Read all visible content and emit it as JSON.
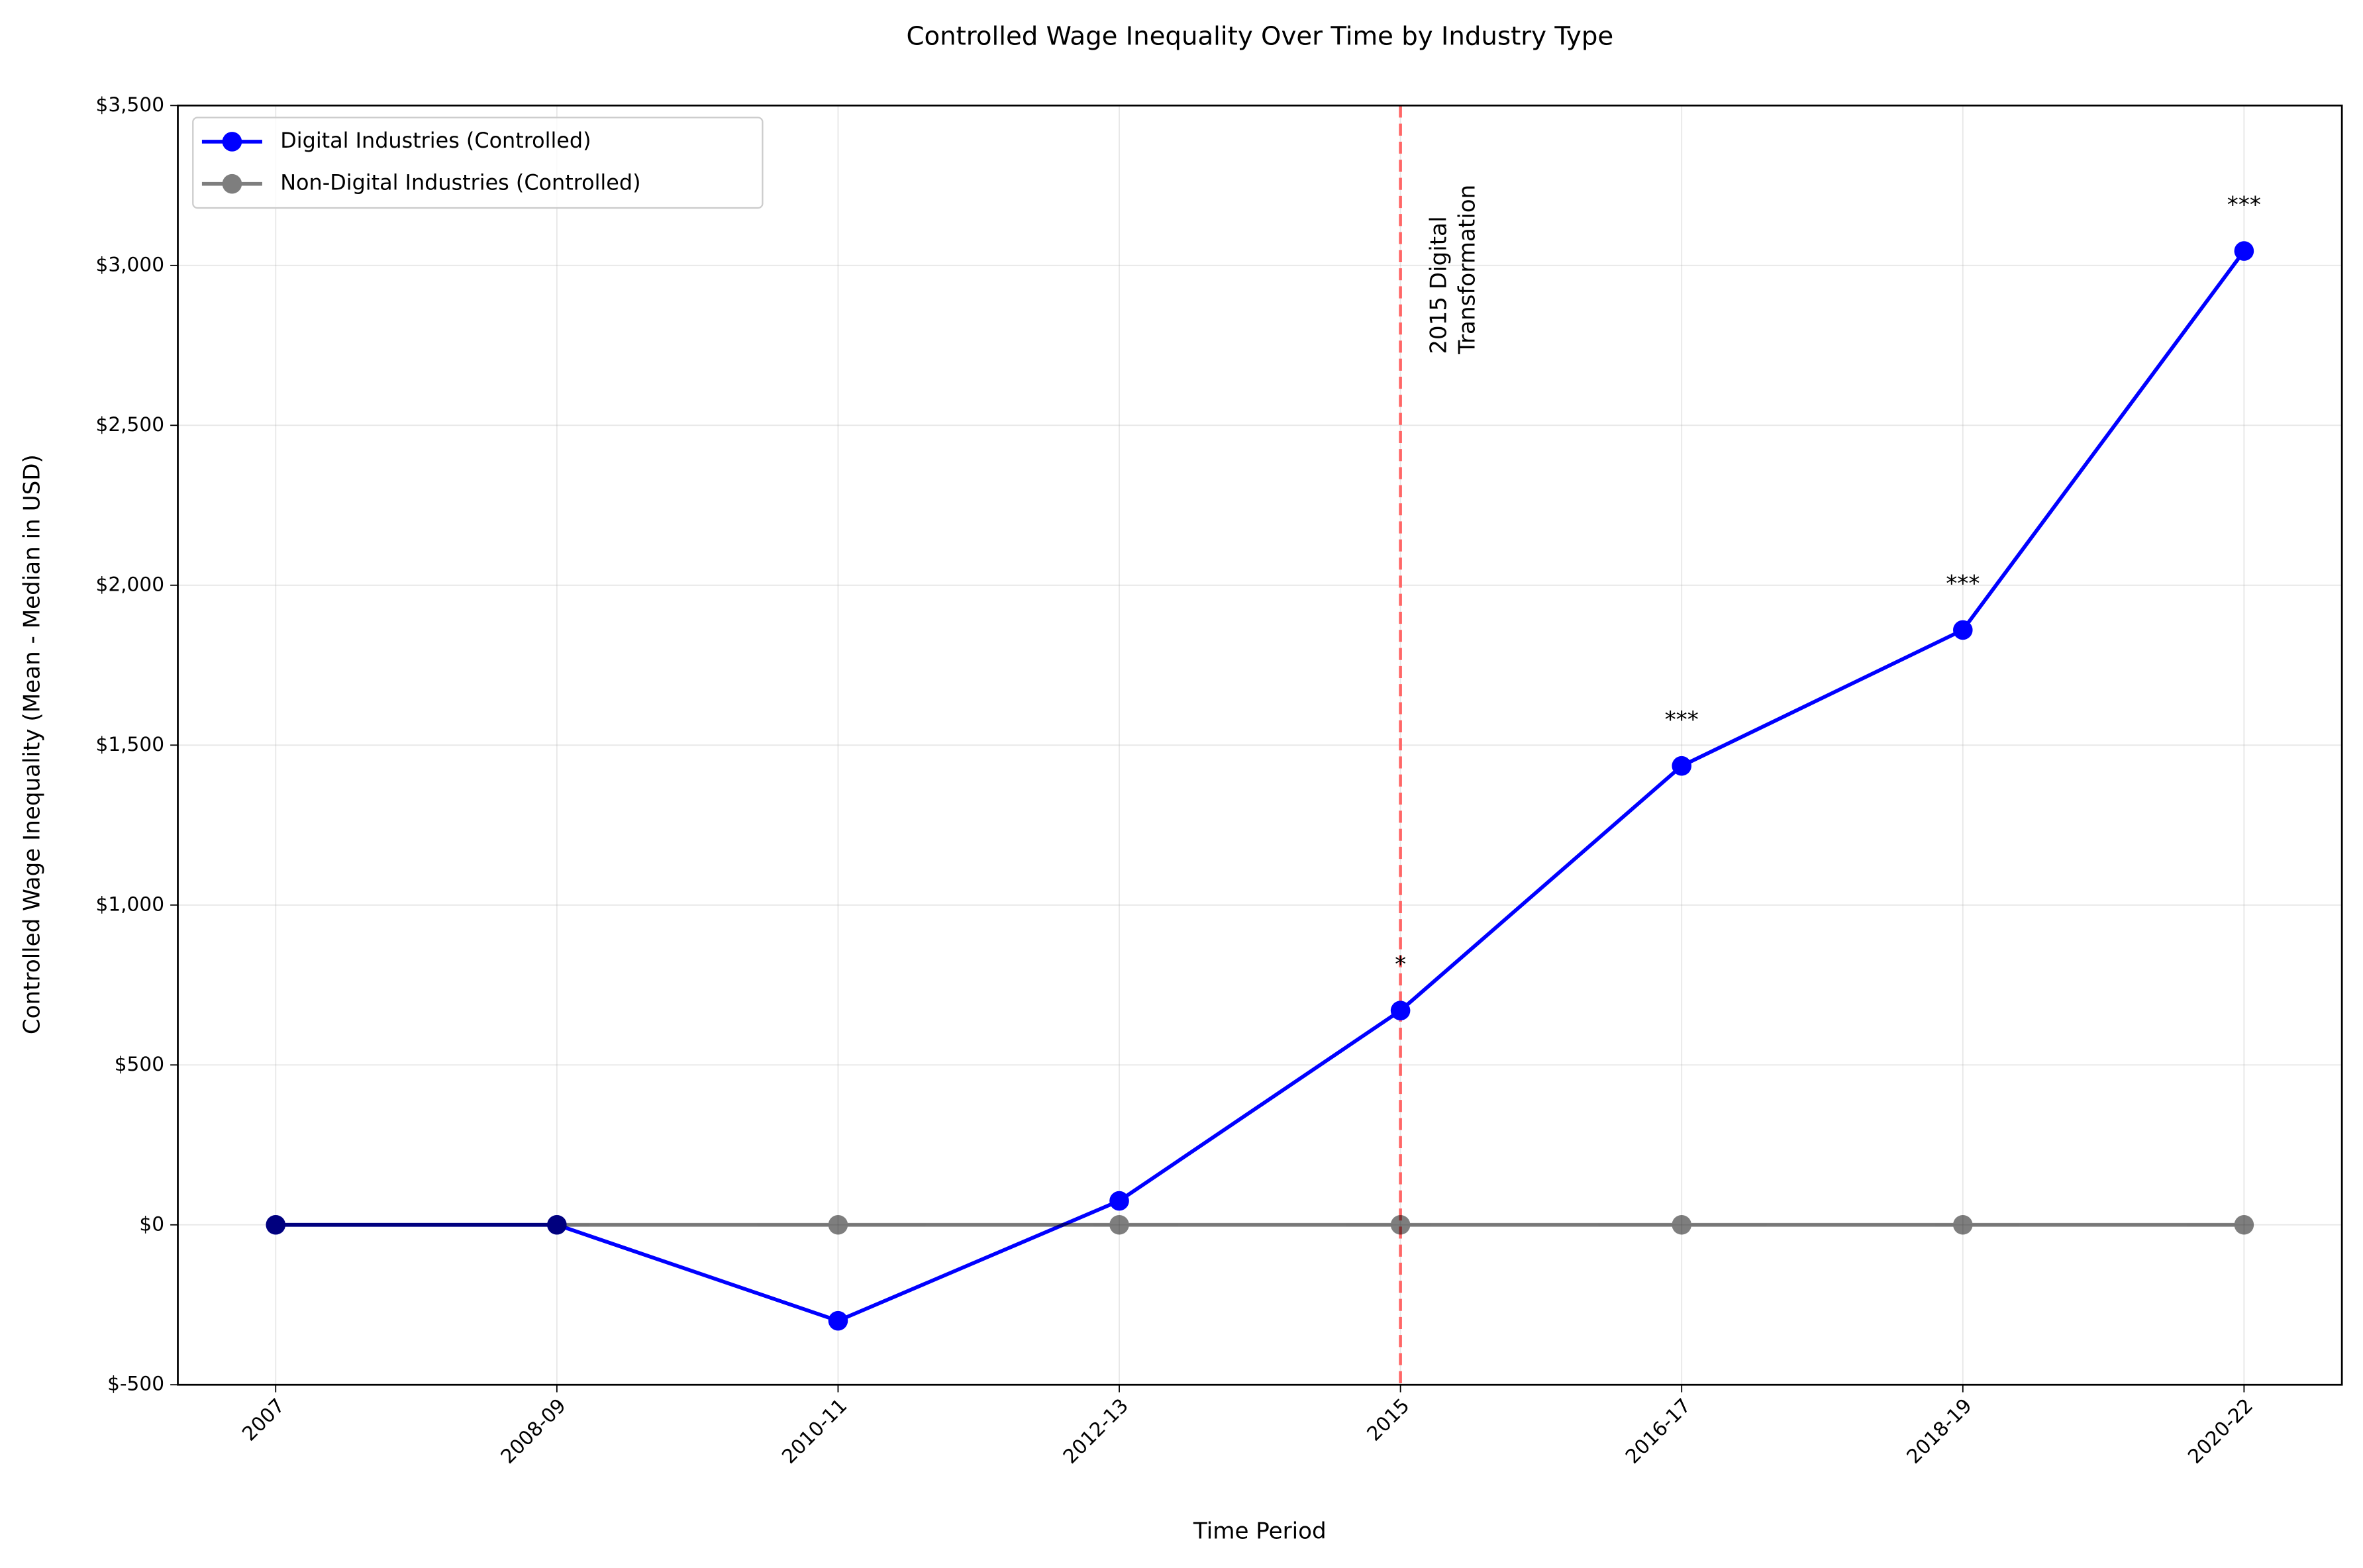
{
  "chart_data": {
    "type": "line",
    "title": "Controlled Wage Inequality Over Time by Industry Type",
    "x_label": "Time Period",
    "y_label": "Controlled Wage Inequality (Mean - Median in USD)",
    "categories": [
      "2007",
      "2008-09",
      "2010-11",
      "2012-13",
      "2015",
      "2016-17",
      "2018-19",
      "2020-22"
    ],
    "series": [
      {
        "name": "Digital Industries (Controlled)",
        "color": "#0000ff",
        "alpha": 1,
        "values": [
          0,
          0,
          -300,
          75,
          670,
          1435,
          1860,
          3045
        ]
      },
      {
        "name": "Non-Digital Industries (Controlled)",
        "color": "#000000",
        "alpha": 0.5,
        "values": [
          0,
          0,
          0,
          0,
          0,
          0,
          0,
          0
        ]
      }
    ],
    "significance": [
      null,
      null,
      null,
      null,
      "*",
      "***",
      "***",
      "***"
    ],
    "vline": {
      "x": "2015",
      "color": "#ff6666",
      "label": [
        "2015 Digital",
        "Transformation"
      ]
    },
    "ylim": [
      -500,
      3500
    ],
    "yticks": [
      {
        "value": -500,
        "label": "$-500"
      },
      {
        "value": 0,
        "label": "$0"
      },
      {
        "value": 500,
        "label": "$500"
      },
      {
        "value": 1000,
        "label": "$1,000"
      },
      {
        "value": 1500,
        "label": "$1,500"
      },
      {
        "value": 2000,
        "label": "$2,000"
      },
      {
        "value": 2500,
        "label": "$2,500"
      },
      {
        "value": 3000,
        "label": "$3,000"
      },
      {
        "value": 3500,
        "label": "$3,500"
      }
    ],
    "grid": true,
    "legend": "upper left"
  }
}
